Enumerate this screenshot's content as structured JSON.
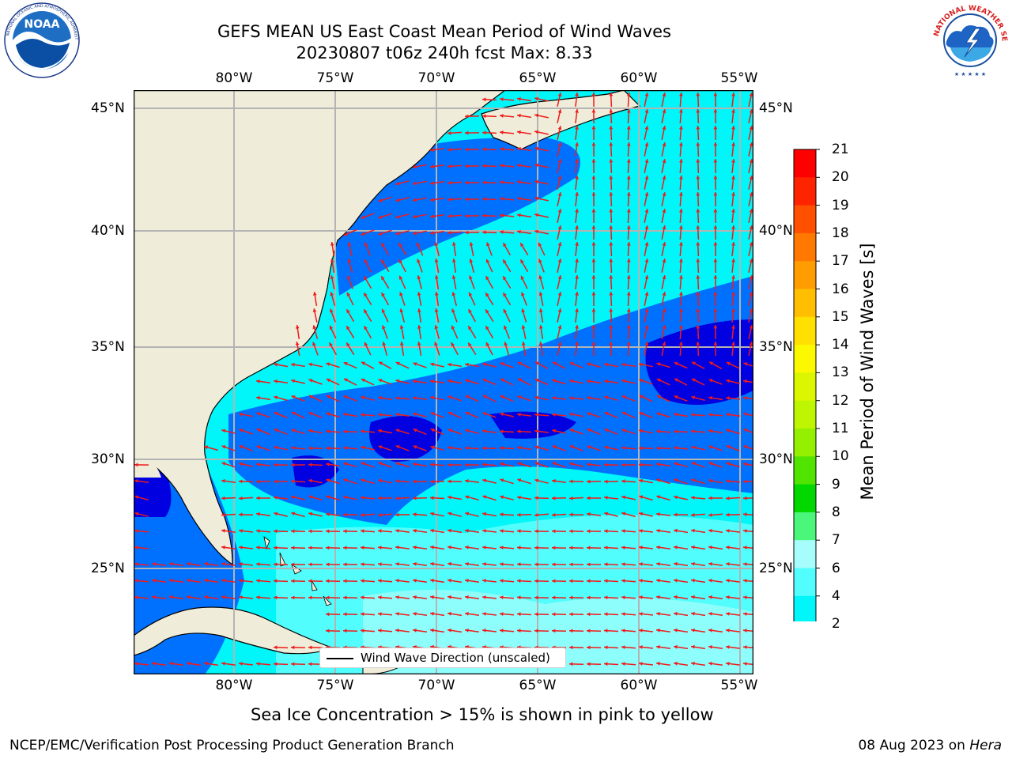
{
  "header": {
    "title": "GEFS MEAN US East Coast Mean Period of Wind Waves",
    "subtitle": "20230807 t06z 240h fcst   Max: 8.33"
  },
  "logos": {
    "left": {
      "name": "NOAA",
      "ring_text": "NATIONAL OCEANIC AND ATMOSPHERIC ADMINISTRATION",
      "bottom_text": "U.S. DEPARTMENT OF COMMERCE"
    },
    "right": {
      "ring_text": "NATIONAL WEATHER SERVICE"
    }
  },
  "map": {
    "lon_labels_top": [
      "80°W",
      "75°W",
      "70°W",
      "65°W",
      "60°W",
      "55°W"
    ],
    "lon_labels_bottom": [
      "80°W",
      "75°W",
      "70°W",
      "65°W",
      "60°W",
      "55°W"
    ],
    "lat_labels_left": [
      "45°N",
      "40°N",
      "35°N",
      "30°N",
      "25°N"
    ],
    "lat_labels_right": [
      "45°N",
      "40°N",
      "35°N",
      "30°N",
      "25°N"
    ],
    "legend_label": "Wind Wave Direction (unscaled)",
    "colors": {
      "land": "#efedd9",
      "arrow": "#f01a1a",
      "grid": "#b4b4b4"
    }
  },
  "colorbar": {
    "label": "Mean Period of Wind Waves [s]",
    "ticks": [
      "21",
      "20",
      "19",
      "18",
      "17",
      "16",
      "15",
      "14",
      "13",
      "12",
      "11",
      "10",
      "9",
      "8",
      "7",
      "6",
      "4",
      "2"
    ],
    "colors": [
      "#ff0000",
      "#ff2400",
      "#ff5000",
      "#ff7800",
      "#ff9c00",
      "#ffbe00",
      "#ffe000",
      "#fcf800",
      "#dcf500",
      "#bef500",
      "#94ef00",
      "#50e400",
      "#00d800",
      "#4af77a",
      "#a6fdfb",
      "#52fdfd",
      "#00f6f8",
      "#0070ff"
    ],
    "under_color": "#0000e0"
  },
  "footer": {
    "note": "Sea Ice Concentration > 15% is shown in pink to yellow",
    "credit_left": "NCEP/EMC/Verification Post Processing Product Generation Branch",
    "credit_right_date": "08 Aug 2023 on ",
    "credit_right_host": "Hera"
  }
}
